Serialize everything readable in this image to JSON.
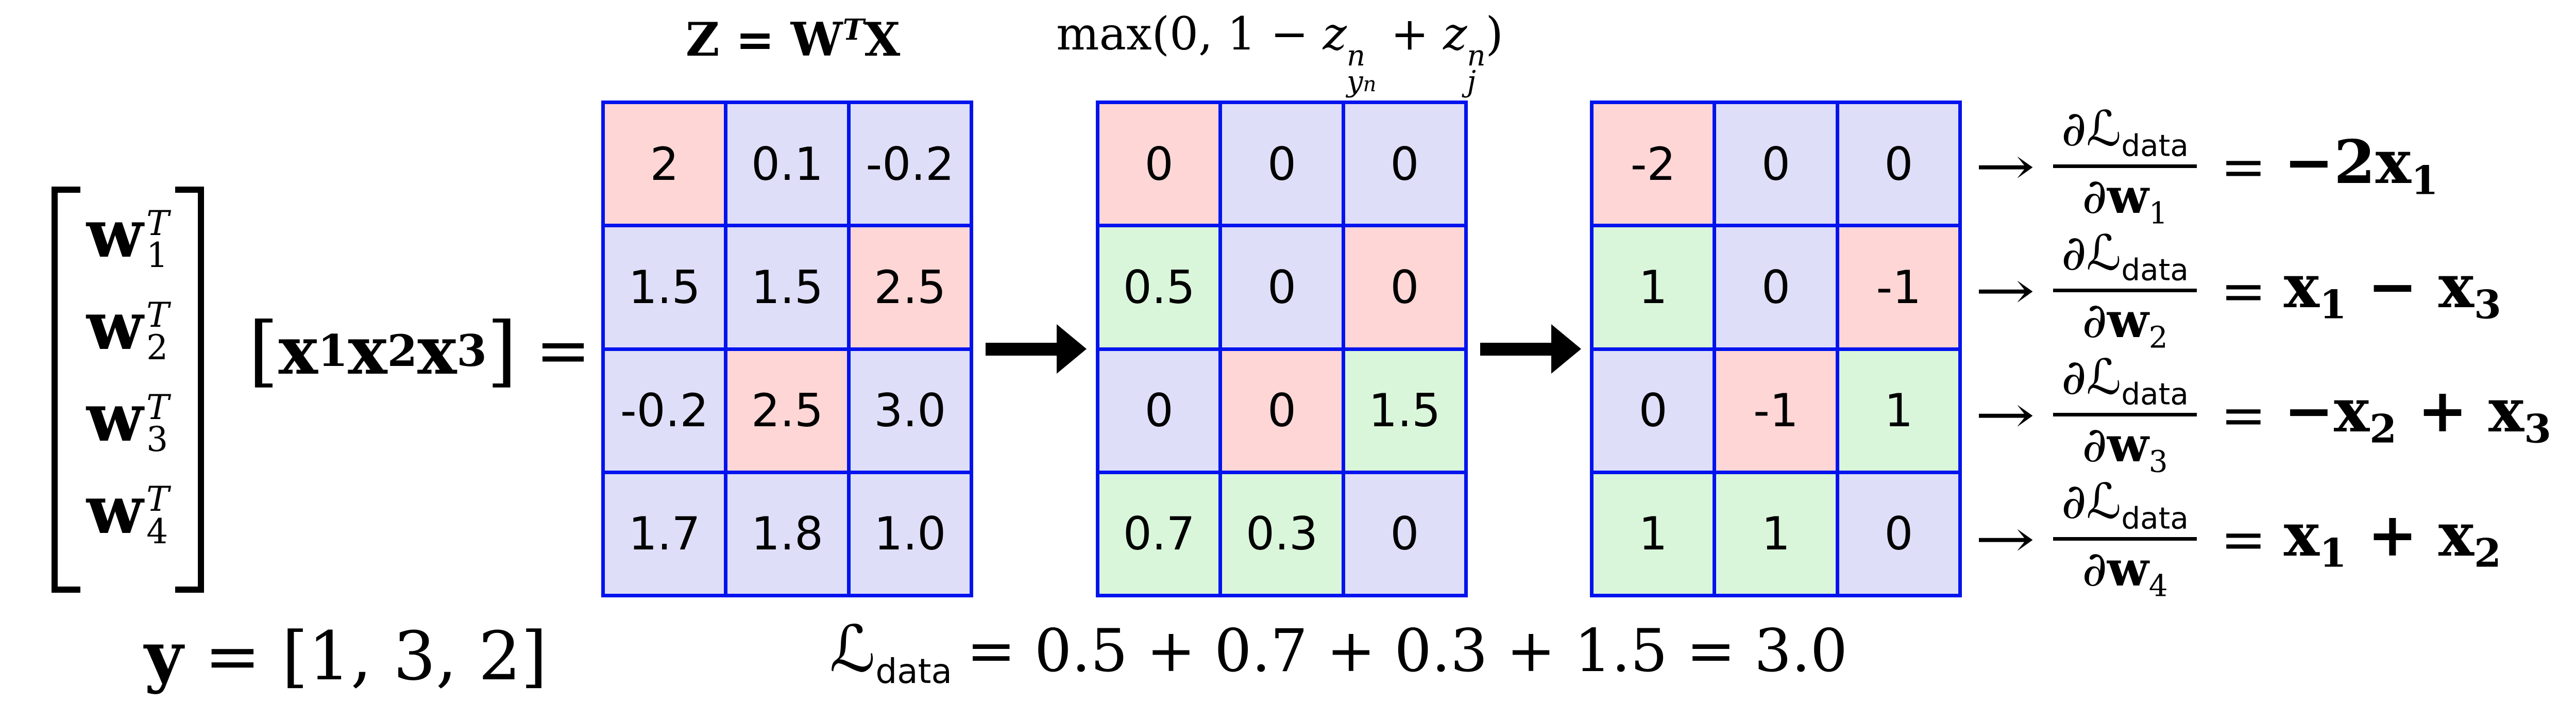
{
  "colors": {
    "cell_base": "#dedef8",
    "cell_pink": "#ffd6d6",
    "cell_green": "#d9f6da",
    "grid_blue": "#0013ee",
    "text": "#000000",
    "background": "#ffffff"
  },
  "icons": {
    "flow_arrow": "thick-right-arrow",
    "gradient_arrow": "→"
  },
  "left_vector": {
    "rows": [
      {
        "base": "w",
        "sup": "T",
        "sub": "1"
      },
      {
        "base": "w",
        "sup": "T",
        "sub": "2"
      },
      {
        "base": "w",
        "sup": "T",
        "sub": "3"
      },
      {
        "base": "w",
        "sup": "T",
        "sub": "4"
      }
    ]
  },
  "x_vector": {
    "open": "[",
    "b1": "x",
    "s1": "1",
    "b2": "x",
    "s2": "2",
    "b3": "x",
    "s3": "3",
    "close": "]",
    "eq": "="
  },
  "y_label": {
    "lhs": "y",
    "rhs": "= [1, 3, 2]"
  },
  "matrix_z": {
    "title": {
      "main": "Z = W",
      "sup": "T",
      "tail": "X"
    },
    "rows": [
      [
        {
          "v": "2",
          "t": "pink"
        },
        {
          "v": "0.1",
          "t": "base"
        },
        {
          "v": "-0.2",
          "t": "base"
        }
      ],
      [
        {
          "v": "1.5",
          "t": "base"
        },
        {
          "v": "1.5",
          "t": "base"
        },
        {
          "v": "2.5",
          "t": "pink"
        }
      ],
      [
        {
          "v": "-0.2",
          "t": "base"
        },
        {
          "v": "2.5",
          "t": "pink"
        },
        {
          "v": "3.0",
          "t": "base"
        }
      ],
      [
        {
          "v": "1.7",
          "t": "base"
        },
        {
          "v": "1.8",
          "t": "base"
        },
        {
          "v": "1.0",
          "t": "base"
        }
      ]
    ]
  },
  "matrix_hinge": {
    "title": {
      "fn": "max(0, 1 − ",
      "z1": "z",
      "z1_sup": "n",
      "z1_sub": "y",
      "z1_sub_sub": "n",
      "plus": " + ",
      "z2": "z",
      "z2_sup": "n",
      "z2_sub": "j",
      "close": ")"
    },
    "rows": [
      [
        {
          "v": "0",
          "t": "pink"
        },
        {
          "v": "0",
          "t": "base"
        },
        {
          "v": "0",
          "t": "base"
        }
      ],
      [
        {
          "v": "0.5",
          "t": "green"
        },
        {
          "v": "0",
          "t": "base"
        },
        {
          "v": "0",
          "t": "pink"
        }
      ],
      [
        {
          "v": "0",
          "t": "base"
        },
        {
          "v": "0",
          "t": "pink"
        },
        {
          "v": "1.5",
          "t": "green"
        }
      ],
      [
        {
          "v": "0.7",
          "t": "green"
        },
        {
          "v": "0.3",
          "t": "green"
        },
        {
          "v": "0",
          "t": "base"
        }
      ]
    ]
  },
  "matrix_grad": {
    "rows": [
      [
        {
          "v": "-2",
          "t": "pink"
        },
        {
          "v": "0",
          "t": "base"
        },
        {
          "v": "0",
          "t": "base"
        }
      ],
      [
        {
          "v": "1",
          "t": "green"
        },
        {
          "v": "0",
          "t": "base"
        },
        {
          "v": "-1",
          "t": "pink"
        }
      ],
      [
        {
          "v": "0",
          "t": "base"
        },
        {
          "v": "-1",
          "t": "pink"
        },
        {
          "v": "1",
          "t": "green"
        }
      ],
      [
        {
          "v": "1",
          "t": "green"
        },
        {
          "v": "1",
          "t": "green"
        },
        {
          "v": "0",
          "t": "base"
        }
      ]
    ]
  },
  "gradients": [
    {
      "arrow": "→",
      "num_partial": "∂",
      "num_script": "ℒ",
      "num_sub": "data",
      "den_partial": "∂",
      "den_base": "w",
      "den_sub": "1",
      "eq": "=",
      "rhs_a": "−2x",
      "rhs_a_sub": "1",
      "rhs_b": "",
      "rhs_b_sub": ""
    },
    {
      "arrow": "→",
      "num_partial": "∂",
      "num_script": "ℒ",
      "num_sub": "data",
      "den_partial": "∂",
      "den_base": "w",
      "den_sub": "2",
      "eq": "=",
      "rhs_a": "x",
      "rhs_a_sub": "1",
      "rhs_b": " − x",
      "rhs_b_sub": "3"
    },
    {
      "arrow": "→",
      "num_partial": "∂",
      "num_script": "ℒ",
      "num_sub": "data",
      "den_partial": "∂",
      "den_base": "w",
      "den_sub": "3",
      "eq": "=",
      "rhs_a": "−x",
      "rhs_a_sub": "2",
      "rhs_b": " + x",
      "rhs_b_sub": "3"
    },
    {
      "arrow": "→",
      "num_partial": "∂",
      "num_script": "ℒ",
      "num_sub": "data",
      "den_partial": "∂",
      "den_base": "w",
      "den_sub": "4",
      "eq": "=",
      "rhs_a": "x",
      "rhs_a_sub": "1",
      "rhs_b": " + x",
      "rhs_b_sub": "2"
    }
  ],
  "loss_line": {
    "script": "ℒ",
    "sub": "data",
    "rest": "= 0.5 + 0.7 + 0.3 + 1.5 = 3.0"
  }
}
